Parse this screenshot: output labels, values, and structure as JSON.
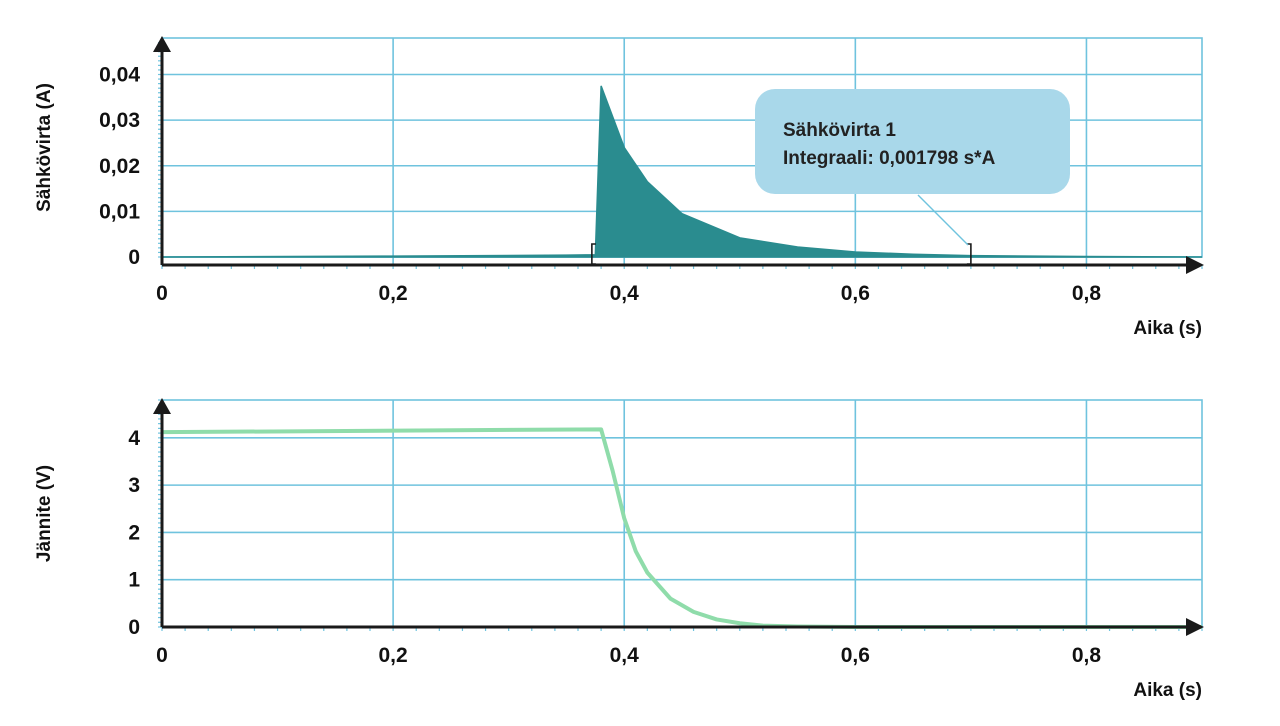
{
  "colors": {
    "grid": "#6fc3de",
    "axis": "#1a1a1a",
    "current_fill": "#2a8c8f",
    "voltage_line": "#8fdcaa",
    "callout_bg": "#a9d8ea"
  },
  "chart_data": [
    {
      "type": "area",
      "xlabel": "Aika (s)",
      "ylabel": "Sähkövirta (A)",
      "xlim": [
        0,
        0.9
      ],
      "ylim": [
        0,
        0.048
      ],
      "x_ticks": [
        "0",
        "0,2",
        "0,4",
        "0,6",
        "0,8"
      ],
      "y_ticks": [
        "0",
        "0,01",
        "0,02",
        "0,03",
        "0,04"
      ],
      "grid": true,
      "series": [
        {
          "x": [
            0,
            0.2,
            0.35,
            0.375,
            0.38,
            0.4,
            0.42,
            0.45,
            0.5,
            0.55,
            0.6,
            0.65,
            0.7,
            0.8,
            0.9
          ],
          "y": [
            0.0,
            0.0002,
            0.0004,
            0.0005,
            0.0375,
            0.024,
            0.0165,
            0.0095,
            0.0042,
            0.0022,
            0.0011,
            0.0006,
            0.0003,
            0.0001,
            0.0
          ]
        }
      ],
      "integral_range": [
        0.372,
        0.7
      ],
      "annotation": {
        "title": "Sähkövirta 1",
        "text": "Integraali: 0,001798 s*A"
      }
    },
    {
      "type": "line",
      "xlabel": "Aika (s)",
      "ylabel": "Jännite (V)",
      "xlim": [
        0,
        0.9
      ],
      "ylim": [
        0,
        4.8
      ],
      "x_ticks": [
        "0",
        "0,2",
        "0,4",
        "0,6",
        "0,8"
      ],
      "y_ticks": [
        "0",
        "1",
        "2",
        "3",
        "4"
      ],
      "grid": true,
      "series": [
        {
          "x": [
            0,
            0.38,
            0.39,
            0.4,
            0.41,
            0.42,
            0.44,
            0.46,
            0.48,
            0.5,
            0.52,
            0.55,
            0.6,
            0.7,
            0.8,
            0.9
          ],
          "y": [
            4.12,
            4.18,
            3.3,
            2.3,
            1.6,
            1.15,
            0.6,
            0.32,
            0.16,
            0.08,
            0.03,
            0.01,
            0.0,
            0.0,
            0.0,
            0.0
          ]
        }
      ]
    }
  ]
}
